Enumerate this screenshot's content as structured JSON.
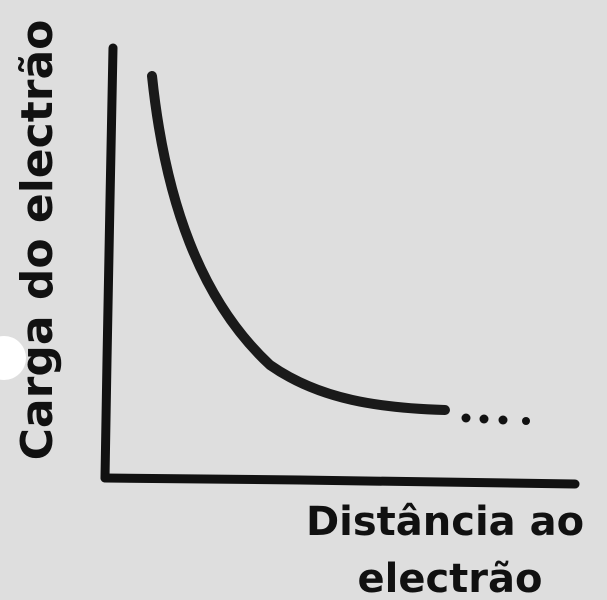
{
  "y_axis_label": "Carga do electrão",
  "x_axis_label_lines": [
    "Distância ao",
    "electrão"
  ]
}
